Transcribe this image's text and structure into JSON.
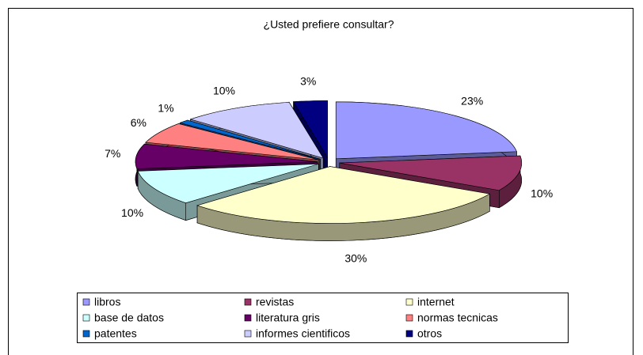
{
  "chart_data": {
    "type": "pie",
    "title": "¿Usted prefiere consultar?",
    "categories": [
      "libros",
      "revistas",
      "internet",
      "base de datos",
      "literatura gris",
      "normas tecnicas",
      "patentes",
      "informes cientificos",
      "otros"
    ],
    "values": [
      23,
      10,
      30,
      10,
      7,
      6,
      1,
      10,
      3
    ],
    "value_labels": [
      "23%",
      "10%",
      "30%",
      "10%",
      "7%",
      "6%",
      "1%",
      "10%",
      "3%"
    ],
    "colors": [
      "#9999ff",
      "#993366",
      "#ffffcc",
      "#ccffff",
      "#660066",
      "#ff8080",
      "#0066cc",
      "#ccccff",
      "#000080"
    ],
    "legend": "bottom"
  }
}
